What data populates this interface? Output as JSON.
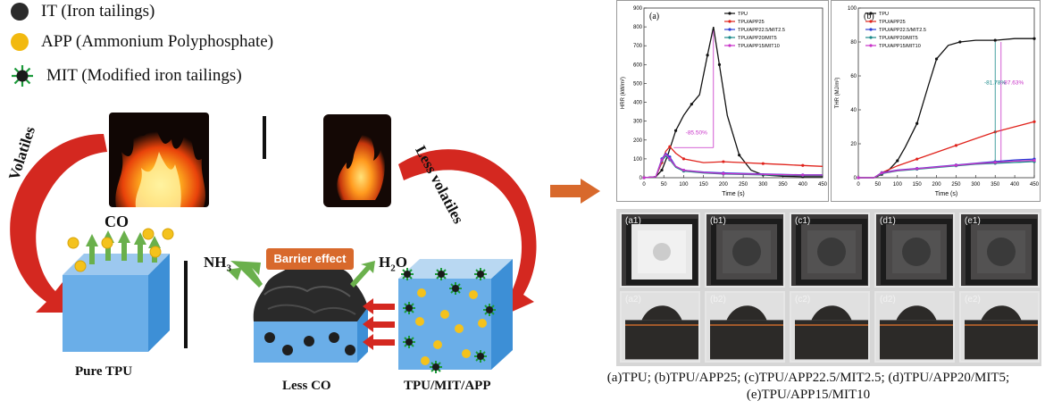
{
  "legend": [
    {
      "text": "IT (Iron tailings)",
      "color": "#2b2b2b"
    },
    {
      "text": "APP (Ammonium Polyphosphate)",
      "color": "#f2b90f"
    },
    {
      "text": "MIT (Modified iron tailings)",
      "color": "#1c9a3a"
    }
  ],
  "scheme": {
    "volatiles": "Volatiles",
    "less_volatiles": "Less volatiles",
    "co": "CO",
    "nh3": "NH",
    "nh3_sub": "3",
    "h2o_pre": "H",
    "h2o_sub": "2",
    "h2o_post": "O",
    "barrier": "Barrier effect",
    "pure_tpu": "Pure TPU",
    "less_co": "Less CO",
    "tpu_mit_app": "TPU/MIT/APP"
  },
  "charts": {
    "a": {
      "panel": "(a)",
      "ylabel": "HRR (kW/m²)",
      "xlabel": "Time (s)",
      "annotation": "-85.50%"
    },
    "b": {
      "panel": "(b)",
      "ylabel": "THR (MJ/m²)",
      "xlabel": "Time (s)",
      "annotation1": "-81.78%",
      "annotation2": "-87.63%"
    }
  },
  "chart_data": [
    {
      "type": "line",
      "title": "(a)",
      "xlabel": "Time (s)",
      "ylabel": "HRR (kW/m²)",
      "xlim": [
        0,
        450
      ],
      "ylim": [
        0,
        900
      ],
      "xticks": [
        0,
        50,
        100,
        150,
        200,
        250,
        300,
        350,
        400,
        450
      ],
      "yticks": [
        0,
        100,
        200,
        300,
        400,
        500,
        600,
        700,
        800,
        900
      ],
      "legend_position": "top-right",
      "series": [
        {
          "name": "TPU",
          "color": "#111111",
          "x": [
            0,
            30,
            45,
            60,
            80,
            100,
            120,
            140,
            160,
            175,
            190,
            210,
            240,
            270,
            300,
            350,
            400,
            450
          ],
          "y": [
            0,
            5,
            40,
            120,
            250,
            330,
            390,
            440,
            650,
            800,
            600,
            330,
            120,
            40,
            15,
            8,
            5,
            5
          ]
        },
        {
          "name": "TPU/APP25",
          "color": "#e0231c",
          "x": [
            0,
            30,
            45,
            55,
            65,
            80,
            100,
            150,
            200,
            250,
            300,
            350,
            400,
            450
          ],
          "y": [
            0,
            5,
            80,
            140,
            165,
            130,
            100,
            80,
            85,
            80,
            75,
            70,
            65,
            60
          ]
        },
        {
          "name": "TPU/APP22.5/MIT2.5",
          "color": "#2b3dd6",
          "x": [
            0,
            30,
            45,
            55,
            65,
            80,
            100,
            150,
            200,
            300,
            400,
            450
          ],
          "y": [
            0,
            5,
            100,
            130,
            110,
            60,
            40,
            30,
            25,
            20,
            15,
            15
          ]
        },
        {
          "name": "TPU/APP20/MIT5",
          "color": "#1a8a8a",
          "x": [
            0,
            30,
            45,
            55,
            65,
            80,
            100,
            150,
            200,
            300,
            400,
            450
          ],
          "y": [
            0,
            5,
            90,
            115,
            95,
            55,
            35,
            25,
            20,
            15,
            12,
            12
          ]
        },
        {
          "name": "TPU/APP15/MIT10",
          "color": "#c832c8",
          "x": [
            0,
            30,
            45,
            55,
            65,
            80,
            100,
            150,
            200,
            300,
            400,
            450
          ],
          "y": [
            0,
            5,
            95,
            125,
            100,
            60,
            40,
            28,
            22,
            18,
            14,
            14
          ]
        }
      ]
    },
    {
      "type": "line",
      "title": "(b)",
      "xlabel": "Time (s)",
      "ylabel": "THR (MJ/m²)",
      "xlim": [
        0,
        450
      ],
      "ylim": [
        0,
        100
      ],
      "xticks": [
        0,
        50,
        100,
        150,
        200,
        250,
        300,
        350,
        400,
        450
      ],
      "yticks": [
        0,
        20,
        40,
        60,
        80,
        100
      ],
      "legend_position": "top-left",
      "series": [
        {
          "name": "TPU",
          "color": "#111111",
          "x": [
            0,
            40,
            60,
            80,
            100,
            120,
            150,
            180,
            200,
            230,
            260,
            300,
            350,
            400,
            450
          ],
          "y": [
            0,
            0,
            2,
            5,
            10,
            18,
            32,
            55,
            70,
            78,
            80,
            81,
            81,
            82,
            82
          ]
        },
        {
          "name": "TPU/APP25",
          "color": "#e0231c",
          "x": [
            0,
            40,
            60,
            100,
            150,
            200,
            250,
            300,
            350,
            400,
            450
          ],
          "y": [
            0,
            0,
            3,
            7,
            11,
            15,
            19,
            23,
            27,
            30,
            33
          ]
        },
        {
          "name": "TPU/APP22.5/MIT2.5",
          "color": "#2b3dd6",
          "x": [
            0,
            40,
            60,
            100,
            150,
            200,
            250,
            300,
            350,
            400,
            450
          ],
          "y": [
            0,
            0,
            3,
            4.5,
            5.5,
            6.5,
            7.5,
            8.5,
            9.5,
            10.5,
            11
          ]
        },
        {
          "name": "TPU/APP20/MIT5",
          "color": "#1a8a8a",
          "x": [
            0,
            40,
            60,
            100,
            150,
            200,
            250,
            300,
            350,
            400,
            450
          ],
          "y": [
            0,
            0,
            2.5,
            4,
            5,
            6,
            7,
            8,
            8.5,
            9,
            9.5
          ]
        },
        {
          "name": "TPU/APP15/MIT10",
          "color": "#c832c8",
          "x": [
            0,
            40,
            60,
            100,
            150,
            200,
            250,
            300,
            350,
            400,
            450
          ],
          "y": [
            0,
            0,
            2.8,
            4.3,
            5.3,
            6.3,
            7.3,
            8.3,
            9,
            9.8,
            10.2
          ]
        }
      ]
    }
  ],
  "photos": {
    "top_tags": [
      "(a1)",
      "(b1)",
      "(c1)",
      "(d1)",
      "(e1)"
    ],
    "bottom_tags": [
      "(a2)",
      "(b2)",
      "(c2)",
      "(d2)",
      "(e2)"
    ]
  },
  "caption": {
    "line1": "(a)TPU; (b)TPU/APP25; (c)TPU/APP22.5/MIT2.5; (d)TPU/APP20/MIT5;",
    "line2": "(e)TPU/APP15/MIT10"
  }
}
